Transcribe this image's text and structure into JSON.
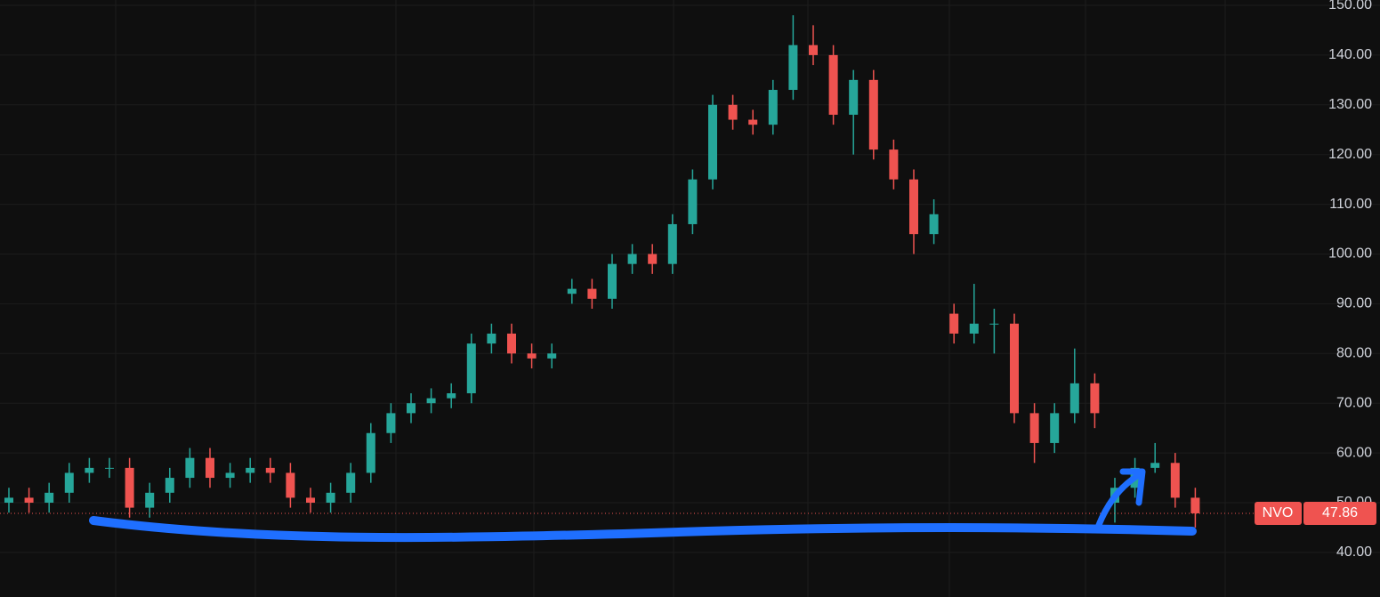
{
  "chart_data": {
    "type": "candlestick",
    "symbol": "NVO",
    "last_price": 47.86,
    "up_color": "#26a69a",
    "down_color": "#ef5350",
    "open": [
      50,
      51,
      50,
      52,
      56,
      57,
      57,
      49,
      52,
      55,
      59,
      55,
      56,
      57,
      56,
      51,
      50,
      52,
      56,
      64,
      68,
      70,
      71,
      72,
      82,
      84,
      80,
      79,
      92,
      93,
      91,
      98,
      100,
      98,
      106,
      115,
      130,
      127,
      126,
      133,
      142,
      140,
      128,
      135,
      121,
      115,
      104,
      88,
      84,
      86,
      86,
      68,
      62,
      68,
      74,
      50,
      53,
      57,
      58,
      51
    ],
    "high": [
      53,
      53,
      54,
      58,
      59,
      59,
      59,
      54,
      57,
      61,
      61,
      58,
      59,
      59,
      58,
      53,
      54,
      58,
      66,
      70,
      72,
      73,
      74,
      84,
      86,
      86,
      82,
      82,
      95,
      95,
      100,
      102,
      102,
      108,
      117,
      132,
      132,
      129,
      135,
      148,
      146,
      142,
      137,
      137,
      123,
      117,
      111,
      90,
      94,
      89,
      88,
      70,
      70,
      81,
      76,
      55,
      59,
      62,
      60,
      53
    ],
    "low": [
      48,
      48,
      48,
      50,
      54,
      55,
      47,
      47,
      50,
      53,
      53,
      53,
      54,
      54,
      49,
      48,
      48,
      50,
      54,
      62,
      66,
      68,
      69,
      70,
      80,
      78,
      77,
      77,
      90,
      89,
      89,
      96,
      96,
      96,
      104,
      113,
      125,
      124,
      124,
      131,
      138,
      126,
      120,
      119,
      113,
      100,
      102,
      82,
      82,
      80,
      66,
      58,
      60,
      66,
      65,
      46,
      51,
      56,
      49,
      45
    ],
    "close": [
      51,
      50,
      52,
      56,
      57,
      57,
      49,
      52,
      55,
      59,
      55,
      56,
      57,
      56,
      51,
      50,
      52,
      56,
      64,
      68,
      70,
      71,
      72,
      82,
      84,
      80,
      79,
      80,
      93,
      91,
      98,
      100,
      98,
      106,
      115,
      130,
      127,
      126,
      133,
      142,
      140,
      128,
      135,
      121,
      115,
      104,
      108,
      84,
      86,
      86,
      68,
      62,
      68,
      74,
      68,
      53,
      57,
      58,
      51,
      47.86
    ],
    "ylim": [
      31.04,
      151.07
    ],
    "yticks": [
      {
        "value": 40,
        "label": "40.00"
      },
      {
        "value": 50,
        "label": "50.00"
      },
      {
        "value": 60,
        "label": "60.00"
      },
      {
        "value": 70,
        "label": "70.00"
      },
      {
        "value": 80,
        "label": "80.00"
      },
      {
        "value": 90,
        "label": "90.00"
      },
      {
        "value": 100,
        "label": "100.00"
      },
      {
        "value": 110,
        "label": "110.00"
      },
      {
        "value": 120,
        "label": "120.00"
      },
      {
        "value": 130,
        "label": "130.00"
      },
      {
        "value": 140,
        "label": "140.00"
      },
      {
        "value": 150,
        "label": "150.00"
      }
    ],
    "grid": true
  }
}
